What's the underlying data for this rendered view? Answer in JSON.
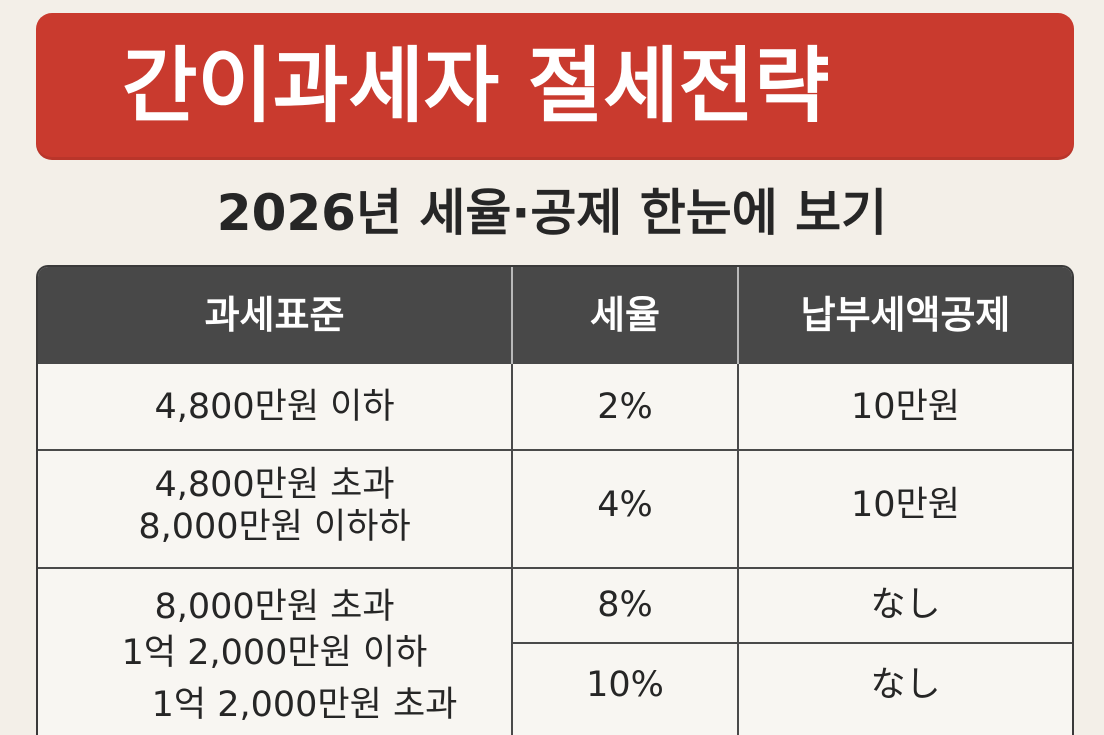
{
  "banner": {
    "title": "간이과세자 절세전략"
  },
  "subtitle": "2026년 세율·공제 한눈에 보기",
  "table": {
    "headers": [
      "과세표준",
      "세율",
      "납부세액공제"
    ],
    "rows": [
      {
        "standard_line1": "4,800만원 이하",
        "standard_line2": "",
        "rate": "2%",
        "deduction": "10만원"
      },
      {
        "standard_line1": "4,800만원 초과",
        "standard_line2": "8,000만원 이하하",
        "rate": "4%",
        "deduction": "10만원"
      },
      {
        "standard_line1": "8,000만원 초과",
        "standard_line2": "1억 2,000만원 이하",
        "rate": "8%",
        "deduction": "なし"
      },
      {
        "standard_line1": "1억 2,000만원 초과",
        "standard_line2": "",
        "rate": "10%",
        "deduction": "なし"
      }
    ]
  }
}
